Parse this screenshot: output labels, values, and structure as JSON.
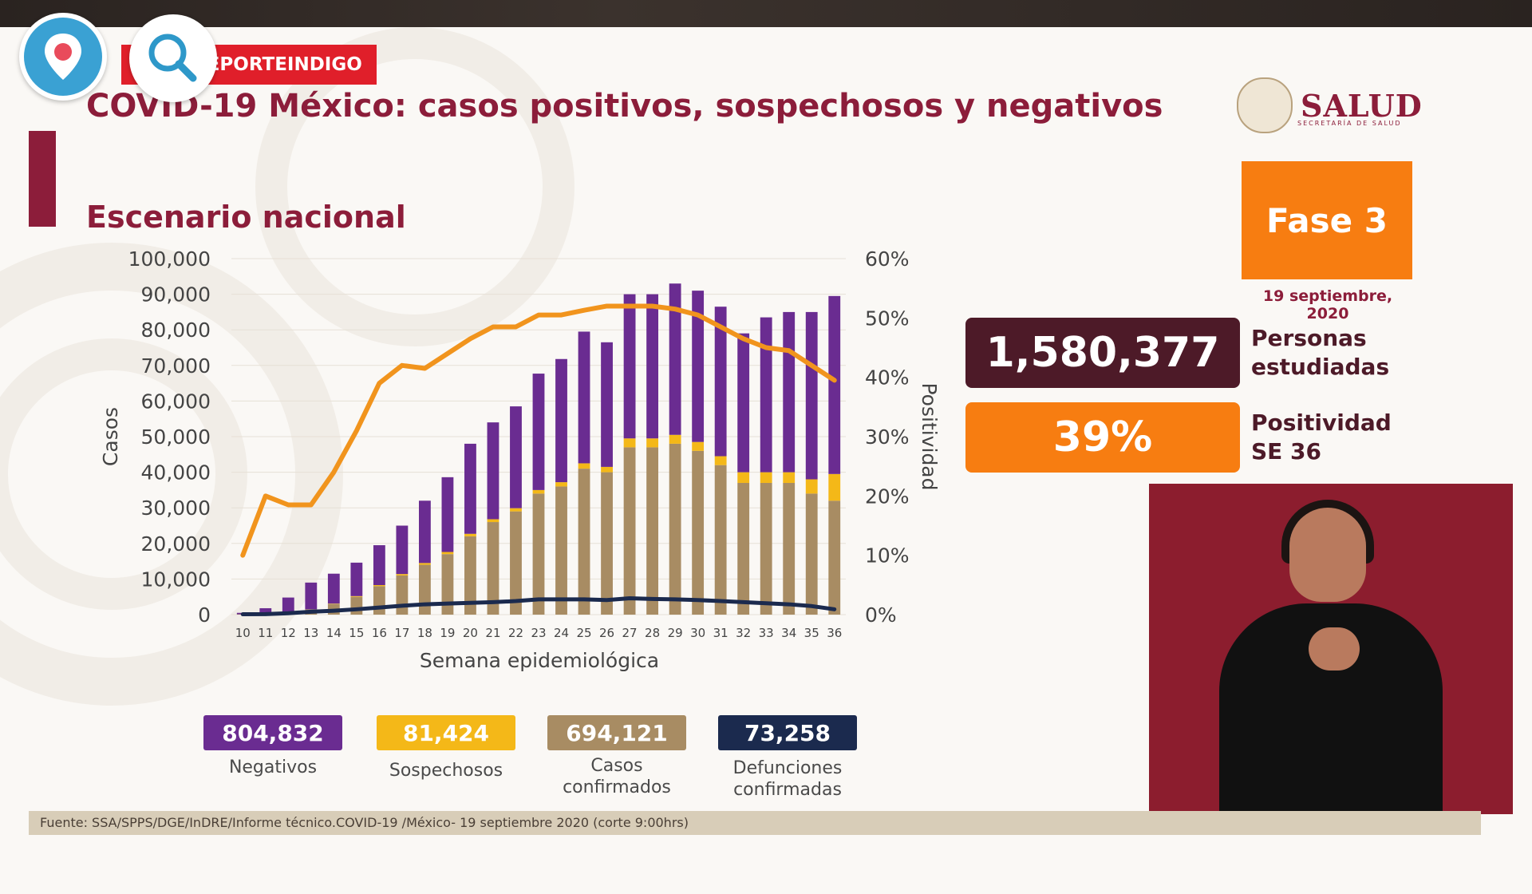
{
  "slide_title": "COVID-19 México: casos positivos, sospechosos y negativos",
  "watermark": "REPORTEINDIGO",
  "logo": {
    "name": "SALUD",
    "subtitle": "SECRETARÍA DE SALUD"
  },
  "section_title": "Escenario nacional",
  "fase": "Fase 3",
  "fecha": "19 septiembre, 2020",
  "personas": {
    "value": "1,580,377",
    "label": "Personas estudiadas"
  },
  "positividad": {
    "value": "39%",
    "label": "Positividad SE 36"
  },
  "legend": [
    {
      "value": "804,832",
      "label": "Negativos",
      "color": "#6a2c91"
    },
    {
      "value": "81,424",
      "label": "Sospechosos",
      "color": "#f4b818"
    },
    {
      "value": "694,121",
      "label": "Casos confirmados",
      "color": "#a88c63"
    },
    {
      "value": "73,258",
      "label": "Defunciones confirmadas",
      "color": "#1b2a4e"
    }
  ],
  "footer": "Fuente: SSA/SPPS/DGE/InDRE/Informe técnico.COVID-19 /México- 19 septiembre 2020 (corte 9:00hrs)",
  "colors": {
    "brand": "#8c1d3a",
    "orange": "#f77d11",
    "dark": "#4d1a28"
  },
  "chart_data": {
    "type": "bar",
    "stacked": true,
    "xlabel": "Semana epidemiológica",
    "ylabel": "Casos",
    "y2label": "Positividad",
    "ylim": [
      0,
      100000
    ],
    "y2lim": [
      0,
      60
    ],
    "yticks": [
      "0",
      "10,000",
      "20,000",
      "30,000",
      "40,000",
      "50,000",
      "60,000",
      "70,000",
      "80,000",
      "90,000",
      "100,000"
    ],
    "y2ticks": [
      "0%",
      "10%",
      "20%",
      "30%",
      "40%",
      "50%",
      "60%"
    ],
    "categories": [
      "10",
      "11",
      "12",
      "13",
      "14",
      "15",
      "16",
      "17",
      "18",
      "19",
      "20",
      "21",
      "22",
      "23",
      "24",
      "25",
      "26",
      "27",
      "28",
      "29",
      "30",
      "31",
      "32",
      "33",
      "34",
      "35",
      "36"
    ],
    "series": [
      {
        "name": "Casos confirmados",
        "color": "#a88c63",
        "values": [
          100,
          300,
          800,
          1500,
          3000,
          5000,
          8000,
          11000,
          14000,
          17000,
          22000,
          26000,
          29000,
          34000,
          36000,
          41000,
          40000,
          47000,
          47000,
          48000,
          46000,
          42000,
          37000,
          37000,
          37000,
          34000,
          32000
        ]
      },
      {
        "name": "Sospechosos",
        "color": "#f4b818",
        "values": [
          0,
          0,
          0,
          0,
          100,
          200,
          300,
          400,
          500,
          600,
          700,
          800,
          900,
          1000,
          1200,
          1500,
          1500,
          2500,
          2500,
          2500,
          2500,
          2500,
          3000,
          3000,
          3000,
          4000,
          7500
        ]
      },
      {
        "name": "Negativos",
        "color": "#6a2c91",
        "values": [
          400,
          1500,
          4000,
          7500,
          8400,
          9400,
          11200,
          13600,
          17500,
          21000,
          25300,
          27200,
          28600,
          32700,
          34600,
          37000,
          35000,
          40500,
          40500,
          42500,
          42500,
          42000,
          39000,
          43500,
          45000,
          47000,
          50000
        ]
      },
      {
        "name": "Defunciones",
        "color": "#1b2a4e",
        "type": "line",
        "values": [
          100,
          150,
          400,
          800,
          1100,
          1500,
          2000,
          2500,
          2900,
          3100,
          3300,
          3500,
          3800,
          4300,
          4300,
          4300,
          4100,
          4600,
          4400,
          4300,
          4100,
          3800,
          3500,
          3200,
          2900,
          2400,
          1500
        ]
      },
      {
        "name": "Positividad",
        "color": "#f1941d",
        "type": "line",
        "axis": "right",
        "values": [
          10,
          20,
          18.5,
          18.5,
          24,
          31,
          39,
          42,
          41.5,
          44,
          46.5,
          48.5,
          48.5,
          50.5,
          50.5,
          51.3,
          52,
          52,
          52,
          51.5,
          50.5,
          48.5,
          46.5,
          45,
          44.5,
          42,
          39.5
        ]
      }
    ]
  }
}
